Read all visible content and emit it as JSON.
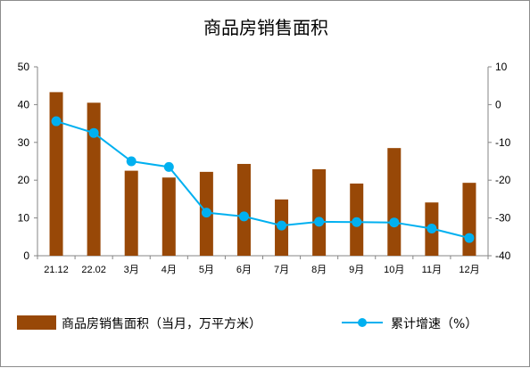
{
  "chart_data": {
    "type": "bar",
    "title": "商品房销售面积",
    "categories": [
      "21.12",
      "22.02",
      "3月",
      "4月",
      "5月",
      "6月",
      "7月",
      "8月",
      "9月",
      "10月",
      "11月",
      "12月"
    ],
    "series": [
      {
        "name": "商品房销售面积（当月，万平方米）",
        "type": "bar",
        "axis": "left",
        "color": "#984807",
        "values": [
          43.3,
          40.5,
          22.5,
          20.7,
          22.2,
          24.3,
          14.9,
          22.9,
          19.1,
          28.5,
          14.1,
          19.3
        ]
      },
      {
        "name": "累计增速（%）",
        "type": "line",
        "axis": "right",
        "color": "#00B0F0",
        "values": [
          -4.4,
          -7.5,
          -15.0,
          -16.5,
          -28.6,
          -29.6,
          -32.0,
          -31.0,
          -31.1,
          -31.2,
          -32.8,
          -35.3
        ]
      }
    ],
    "y_left": {
      "min": 0,
      "max": 50,
      "ticks": [
        0,
        10,
        20,
        30,
        40,
        50
      ]
    },
    "y_right": {
      "min": -40,
      "max": 10,
      "ticks": [
        -40,
        -30,
        -20,
        -10,
        0,
        10
      ]
    },
    "legend_position": "bottom",
    "grid": false
  }
}
